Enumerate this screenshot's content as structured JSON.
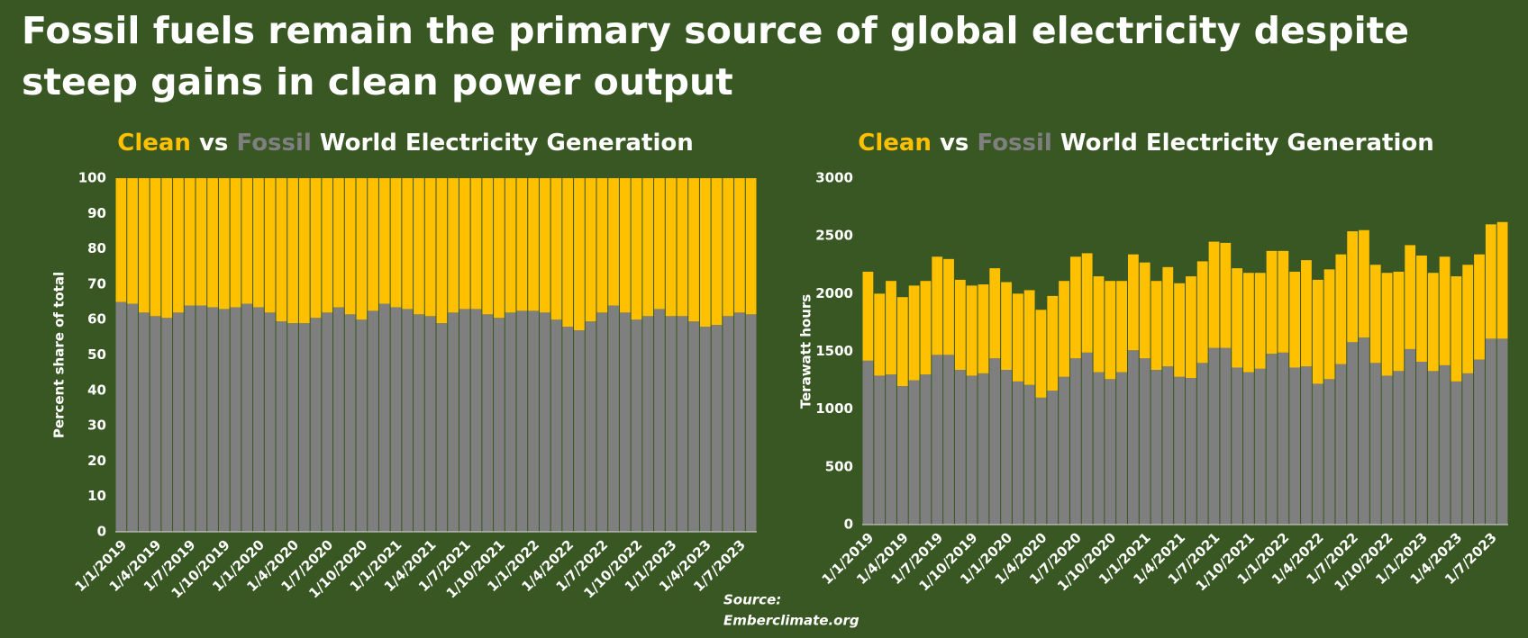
{
  "title": "Fossil fuels remain the primary source of global electricity despite steep gains in clean power output",
  "source": [
    "Source:",
    "Emberclimate.org"
  ],
  "chart_data": [
    {
      "type": "stacked_bar",
      "title_connector": "vs",
      "title": "World Electricity Generation",
      "y_label": "Percent share of total",
      "categories": [
        "1/1/2019",
        null,
        null,
        "1/4/2019",
        null,
        null,
        "1/7/2019",
        null,
        null,
        "1/10/2019",
        null,
        null,
        "1/1/2020",
        null,
        null,
        "1/4/2020",
        null,
        null,
        "1/7/2020",
        null,
        null,
        "1/10/2020",
        null,
        null,
        "1/1/2021",
        null,
        null,
        "1/4/2021",
        null,
        null,
        "1/7/2021",
        null,
        null,
        "1/10/2021",
        null,
        null,
        "1/1/2022",
        null,
        null,
        "1/4/2022",
        null,
        null,
        "1/7/2022",
        null,
        null,
        "1/10/2022",
        null,
        null,
        "1/1/2023",
        null,
        null,
        "1/4/2023",
        null,
        null,
        "1/7/2023",
        null
      ],
      "series": [
        {
          "name": "Fossil",
          "color": "#7f7f7f",
          "values": [
            65,
            64.5,
            62,
            61,
            60.5,
            62,
            64,
            64,
            63.5,
            63,
            63.5,
            64.5,
            63.5,
            62,
            59.5,
            59,
            59,
            60.5,
            62,
            63.5,
            61.5,
            60,
            62.5,
            64.5,
            63.5,
            63,
            61.5,
            61,
            59,
            62,
            63,
            63,
            61.5,
            60.5,
            62,
            62.5,
            62.5,
            62,
            60,
            58,
            57,
            59.5,
            62,
            64,
            62,
            60,
            61,
            63,
            61,
            61,
            59.5,
            58,
            58.5,
            61,
            62,
            61.5
          ]
        },
        {
          "name": "Clean",
          "color": "#ffc000",
          "values": [
            35,
            35.5,
            38,
            39,
            39.5,
            38,
            36,
            36,
            36.5,
            37,
            36.5,
            35.5,
            36.5,
            38,
            40.5,
            41,
            41,
            39.5,
            38,
            36.5,
            38.5,
            40,
            37.5,
            35.5,
            36.5,
            37,
            38.5,
            39,
            41,
            38,
            37,
            37,
            38.5,
            39.5,
            38,
            37.5,
            37.5,
            38,
            40,
            42,
            43,
            40.5,
            38,
            36,
            38,
            40,
            39,
            37,
            39,
            39,
            40.5,
            42,
            41.5,
            39,
            38,
            38.5
          ]
        }
      ],
      "ylim": [
        0,
        100
      ],
      "yticks": [
        0,
        10,
        20,
        30,
        40,
        50,
        60,
        70,
        80,
        90,
        100
      ]
    },
    {
      "type": "stacked_bar",
      "title_connector": "vs",
      "title": "World Electricity Generation",
      "y_label": "Terawatt hours",
      "categories": [
        "1/1/2019",
        null,
        null,
        "1/4/2019",
        null,
        null,
        "1/7/2019",
        null,
        null,
        "1/10/2019",
        null,
        null,
        "1/1/2020",
        null,
        null,
        "1/4/2020",
        null,
        null,
        "1/7/2020",
        null,
        null,
        "1/10/2020",
        null,
        null,
        "1/1/2021",
        null,
        null,
        "1/4/2021",
        null,
        null,
        "1/7/2021",
        null,
        null,
        "1/10/2021",
        null,
        null,
        "1/1/2022",
        null,
        null,
        "1/4/2022",
        null,
        null,
        "1/7/2022",
        null,
        null,
        "1/10/2022",
        null,
        null,
        "1/1/2023",
        null,
        null,
        "1/4/2023",
        null,
        null,
        "1/7/2023",
        null
      ],
      "series": [
        {
          "name": "Fossil",
          "color": "#7f7f7f",
          "values": [
            1420,
            1290,
            1300,
            1200,
            1250,
            1300,
            1470,
            1470,
            1340,
            1290,
            1310,
            1440,
            1340,
            1240,
            1210,
            1100,
            1160,
            1280,
            1440,
            1490,
            1320,
            1260,
            1320,
            1510,
            1440,
            1340,
            1370,
            1280,
            1270,
            1400,
            1530,
            1530,
            1360,
            1320,
            1350,
            1480,
            1490,
            1360,
            1370,
            1220,
            1260,
            1390,
            1580,
            1620,
            1400,
            1290,
            1330,
            1520,
            1410,
            1330,
            1380,
            1240,
            1310,
            1430,
            1610,
            1610
          ]
        },
        {
          "name": "Clean",
          "color": "#ffc000",
          "values": [
            770,
            710,
            810,
            770,
            820,
            810,
            850,
            830,
            780,
            780,
            770,
            780,
            760,
            760,
            820,
            760,
            820,
            830,
            880,
            860,
            830,
            850,
            790,
            830,
            830,
            770,
            860,
            810,
            880,
            880,
            920,
            910,
            860,
            860,
            830,
            890,
            880,
            830,
            920,
            900,
            950,
            950,
            960,
            930,
            850,
            890,
            860,
            900,
            920,
            850,
            940,
            910,
            940,
            910,
            990,
            1010
          ]
        }
      ],
      "ylim": [
        0,
        3000
      ],
      "yticks": [
        0,
        500,
        1000,
        1500,
        2000,
        2500,
        3000
      ]
    }
  ]
}
